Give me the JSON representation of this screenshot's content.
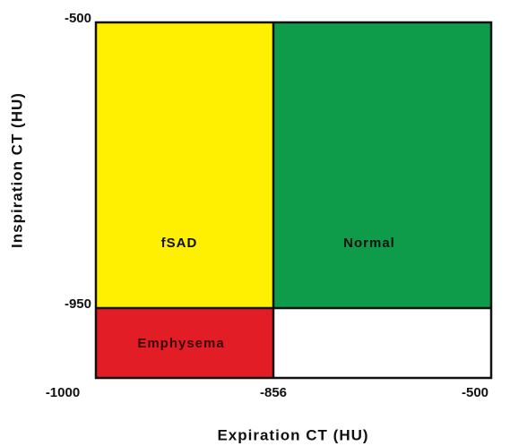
{
  "axes": {
    "x_label": "Expiration CT (HU)",
    "y_label": "Inspiration CT (HU)",
    "x_ticks": [
      "-1000",
      "-856",
      "-500"
    ],
    "y_ticks": [
      "-500",
      "-950"
    ]
  },
  "regions": [
    {
      "label": "fSAD"
    },
    {
      "label": "Normal"
    },
    {
      "label": "Emphysema"
    }
  ]
}
